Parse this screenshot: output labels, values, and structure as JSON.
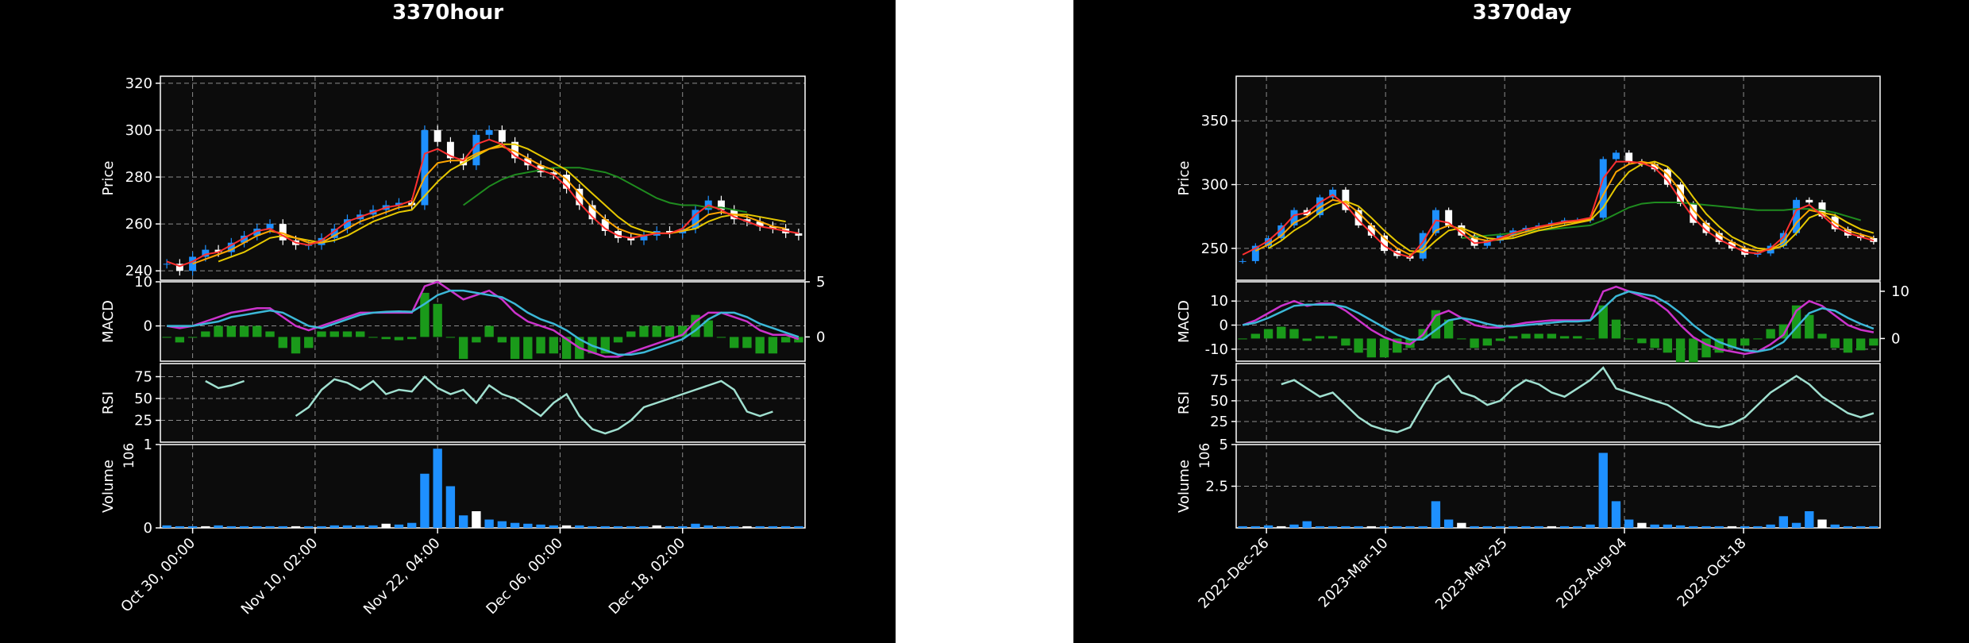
{
  "colors": {
    "background": "#000000",
    "plot_bg": "#0c0c0c",
    "grid": "#8c8c8c",
    "axis": "#ffffff",
    "up": "#1e90ff",
    "down": "#ffffff",
    "ma_short": "#ff3030",
    "ma_mid": "#ffa500",
    "ma_long1": "#e6c800",
    "ma_long2": "#1f8c1f",
    "macd": "#cc33cc",
    "signal": "#3cb8d8",
    "hist": "#1a9a1a",
    "rsi": "#a0e0d0",
    "volume": "#1e90ff"
  },
  "chart_data": [
    {
      "type": "candlestick",
      "title": "3370hour",
      "x_tick_labels": [
        "Oct 30, 00:00",
        "Nov 10, 02:00",
        "Nov 22, 04:00",
        "Dec 06, 00:00",
        "Dec 18, 02:00"
      ],
      "price": {
        "ylabel": "Price",
        "ylim": [
          236,
          323
        ],
        "yticks": [
          240,
          260,
          280,
          300,
          320
        ],
        "close": [
          243,
          240,
          246,
          249,
          248,
          252,
          255,
          258,
          260,
          253,
          251,
          251,
          254,
          258,
          262,
          264,
          266,
          268,
          269,
          268,
          300,
          295,
          288,
          285,
          298,
          300,
          295,
          288,
          285,
          282,
          281,
          275,
          268,
          262,
          257,
          254,
          253,
          255,
          257,
          256,
          258,
          266,
          270,
          266,
          262,
          261,
          259,
          258,
          256,
          255
        ],
        "ma_short": [
          244,
          242,
          244,
          247,
          248,
          251,
          254,
          257,
          258,
          255,
          252,
          251,
          253,
          257,
          261,
          263,
          265,
          267,
          268,
          270,
          290,
          292,
          289,
          287,
          294,
          296,
          294,
          289,
          286,
          283,
          281,
          276,
          269,
          263,
          258,
          255,
          254,
          255,
          256,
          256,
          258,
          264,
          268,
          266,
          263,
          261,
          259,
          258,
          257,
          256
        ],
        "ma_mid": [
          null,
          null,
          243,
          245,
          247,
          249,
          252,
          255,
          257,
          256,
          254,
          252,
          252,
          255,
          258,
          261,
          263,
          265,
          267,
          268,
          280,
          286,
          287,
          287,
          290,
          292,
          293,
          291,
          288,
          285,
          283,
          279,
          273,
          267,
          262,
          258,
          256,
          255,
          256,
          256,
          257,
          260,
          264,
          265,
          264,
          263,
          261,
          259,
          258,
          null
        ],
        "ma_long1": [
          null,
          null,
          null,
          null,
          244,
          246,
          248,
          251,
          254,
          255,
          254,
          253,
          252,
          253,
          255,
          258,
          261,
          263,
          265,
          266,
          272,
          278,
          283,
          286,
          289,
          292,
          294,
          294,
          292,
          289,
          286,
          283,
          278,
          273,
          268,
          263,
          259,
          257,
          256,
          256,
          257,
          258,
          261,
          263,
          264,
          264,
          263,
          262,
          261,
          null
        ],
        "ma_long2": [
          null,
          null,
          null,
          null,
          null,
          null,
          null,
          null,
          null,
          null,
          null,
          null,
          null,
          null,
          null,
          null,
          null,
          null,
          null,
          null,
          null,
          null,
          null,
          268,
          272,
          276,
          279,
          281,
          282,
          283,
          284,
          284,
          284,
          283,
          282,
          280,
          277,
          274,
          271,
          269,
          268,
          268,
          267,
          267,
          266,
          265,
          null,
          null,
          null,
          null
        ]
      },
      "macd": {
        "ylabel": "MACD",
        "ylim": [
          -8,
          10
        ],
        "yticks": [
          0,
          10
        ],
        "right_ylim": [
          -2.2,
          5
        ],
        "right_yticks": [
          0,
          5
        ],
        "macd": [
          0,
          -0.5,
          0,
          1,
          2,
          3,
          3.5,
          4,
          4,
          2,
          0,
          -1,
          0,
          1,
          2,
          3,
          3,
          3,
          3,
          3,
          9,
          10,
          8,
          6,
          7,
          8,
          6,
          3,
          1,
          0,
          -1,
          -3,
          -5,
          -6,
          -7,
          -7,
          -6,
          -5,
          -4,
          -3,
          -2,
          1,
          3,
          3,
          2,
          1,
          -1,
          -2,
          -2,
          -3
        ],
        "signal": [
          0,
          0,
          0,
          0.5,
          1,
          2,
          2.5,
          3,
          3.5,
          3,
          1.5,
          0,
          -0.5,
          0.5,
          1.5,
          2.5,
          3,
          3.2,
          3.3,
          3.2,
          5,
          7,
          8,
          8,
          7.5,
          7,
          6.5,
          5,
          3,
          1.5,
          0.5,
          -1,
          -3,
          -4.5,
          -5.5,
          -6.5,
          -6.5,
          -6,
          -5,
          -4,
          -3,
          -1,
          1.5,
          3,
          3,
          2,
          0.5,
          -0.5,
          -1.5,
          -2.5
        ],
        "hist": [
          0,
          -0.5,
          0,
          0.5,
          1,
          1,
          1,
          1,
          0.5,
          -1,
          -1.5,
          -1,
          0.5,
          0.5,
          0.5,
          0.5,
          0,
          -0.2,
          -0.3,
          -0.2,
          4,
          3,
          0,
          -2,
          -0.5,
          1,
          -0.5,
          -2,
          -2,
          -1.5,
          -1.5,
          -2,
          -2,
          -1.5,
          -1.5,
          -0.5,
          0.5,
          1,
          1,
          1,
          1,
          2,
          1.5,
          0,
          -1,
          -1,
          -1.5,
          -1.5,
          -0.5,
          -0.5
        ]
      },
      "rsi": {
        "ylabel": "RSI",
        "ylim": [
          0,
          90
        ],
        "yticks": [
          25,
          50,
          75
        ],
        "values": [
          null,
          null,
          null,
          70,
          62,
          65,
          70,
          null,
          null,
          null,
          30,
          40,
          60,
          72,
          68,
          60,
          70,
          55,
          60,
          58,
          75,
          62,
          55,
          60,
          45,
          65,
          55,
          50,
          40,
          30,
          45,
          55,
          30,
          15,
          10,
          15,
          25,
          40,
          45,
          50,
          55,
          60,
          65,
          70,
          60,
          35,
          30,
          35,
          null,
          null
        ]
      },
      "volume": {
        "ylabel": "Volume",
        "exponent_label": "10^6",
        "ylim": [
          0,
          1
        ],
        "yticks": [
          0,
          1
        ],
        "values": [
          0.03,
          0.02,
          0.02,
          0.02,
          0.03,
          0.02,
          0.02,
          0.02,
          0.02,
          0.02,
          0.02,
          0.02,
          0.02,
          0.03,
          0.03,
          0.03,
          0.03,
          0.05,
          0.04,
          0.06,
          0.65,
          0.95,
          0.5,
          0.15,
          0.2,
          0.1,
          0.08,
          0.06,
          0.05,
          0.04,
          0.03,
          0.03,
          0.03,
          0.02,
          0.02,
          0.02,
          0.02,
          0.02,
          0.03,
          0.02,
          0.02,
          0.05,
          0.03,
          0.02,
          0.02,
          0.02,
          0.02,
          0.02,
          0.02,
          0.02
        ]
      }
    },
    {
      "type": "candlestick",
      "title": "3370day",
      "x_tick_labels": [
        "2022-Dec-26",
        "2023-Mar-10",
        "2023-May-25",
        "2023-Aug-04",
        "2023-Oct-18"
      ],
      "price": {
        "ylabel": "Price",
        "ylim": [
          225,
          385
        ],
        "yticks": [
          250,
          300,
          350
        ],
        "close": [
          240,
          252,
          258,
          268,
          280,
          276,
          290,
          296,
          280,
          268,
          260,
          248,
          244,
          242,
          262,
          280,
          268,
          260,
          252,
          256,
          260,
          264,
          266,
          268,
          270,
          272,
          272,
          274,
          320,
          325,
          318,
          316,
          312,
          300,
          285,
          270,
          262,
          255,
          250,
          245,
          246,
          252,
          262,
          288,
          286,
          275,
          265,
          260,
          258,
          255
        ],
        "ma_short": [
          245,
          250,
          256,
          265,
          276,
          278,
          286,
          292,
          284,
          272,
          262,
          252,
          246,
          243,
          255,
          272,
          270,
          262,
          254,
          255,
          258,
          262,
          265,
          267,
          269,
          271,
          272,
          274,
          305,
          318,
          318,
          317,
          313,
          303,
          288,
          274,
          264,
          257,
          252,
          247,
          246,
          250,
          259,
          280,
          284,
          276,
          267,
          262,
          259,
          256
        ],
        "ma_mid": [
          null,
          248,
          253,
          260,
          270,
          275,
          282,
          288,
          286,
          278,
          268,
          258,
          250,
          245,
          250,
          264,
          268,
          265,
          258,
          256,
          257,
          260,
          263,
          266,
          268,
          270,
          271,
          273,
          292,
          310,
          316,
          318,
          316,
          308,
          295,
          280,
          269,
          261,
          255,
          250,
          248,
          249,
          255,
          270,
          280,
          278,
          270,
          264,
          261,
          258
        ],
        "ma_long1": [
          null,
          null,
          250,
          256,
          264,
          270,
          278,
          284,
          287,
          283,
          274,
          264,
          255,
          248,
          247,
          256,
          264,
          266,
          262,
          258,
          257,
          258,
          261,
          264,
          266,
          268,
          270,
          272,
          282,
          298,
          310,
          316,
          318,
          314,
          304,
          290,
          277,
          267,
          259,
          254,
          250,
          249,
          252,
          262,
          274,
          278,
          276,
          270,
          265,
          262
        ],
        "ma_long2": [
          null,
          null,
          null,
          null,
          null,
          null,
          null,
          null,
          null,
          null,
          null,
          null,
          null,
          null,
          null,
          null,
          null,
          258,
          259,
          260,
          261,
          262,
          263,
          264,
          265,
          266,
          267,
          268,
          272,
          277,
          282,
          285,
          286,
          286,
          286,
          285,
          284,
          283,
          282,
          281,
          280,
          280,
          280,
          281,
          281,
          280,
          278,
          275,
          272,
          null
        ]
      },
      "macd": {
        "ylabel": "MACD",
        "ylim": [
          -15,
          18
        ],
        "yticks": [
          -10,
          0,
          10
        ],
        "right_ylim": [
          -4.8,
          12
        ],
        "right_yticks": [
          0,
          10
        ],
        "macd": [
          0,
          2,
          5,
          8,
          10,
          8,
          9,
          9,
          6,
          2,
          -2,
          -5,
          -7,
          -8,
          -4,
          4,
          6,
          3,
          0,
          -1,
          -1,
          0,
          1,
          1.5,
          2,
          2,
          2,
          2,
          14,
          16,
          14,
          12,
          10,
          6,
          0,
          -5,
          -8,
          -10,
          -11,
          -12,
          -11,
          -8,
          -4,
          6,
          10,
          8,
          4,
          0,
          -2,
          -3
        ],
        "signal": [
          0,
          1,
          3,
          5.5,
          8,
          8.5,
          8.5,
          8.5,
          7.5,
          5,
          2,
          -1,
          -4,
          -6,
          -6,
          -2,
          2,
          3,
          2,
          0.5,
          -0.5,
          -0.5,
          0,
          0.5,
          1,
          1.5,
          1.5,
          2,
          7,
          12,
          14,
          13,
          12,
          9,
          5,
          0,
          -4,
          -7,
          -9,
          -10.5,
          -11,
          -10,
          -7,
          -1,
          5,
          7,
          6,
          3,
          0.5,
          -1.5
        ],
        "hist": [
          0,
          1,
          2,
          2.5,
          2,
          -0.5,
          0.5,
          0.5,
          -1.5,
          -3,
          -4,
          -4,
          -3,
          -2,
          2,
          6,
          4,
          0,
          -2,
          -1.5,
          -0.5,
          0.5,
          1,
          1,
          1,
          0.5,
          0.5,
          0,
          7,
          4,
          0,
          -1,
          -2,
          -3,
          -5,
          -5,
          -4,
          -3,
          -2,
          -1.5,
          0,
          2,
          3,
          7,
          5,
          1,
          -2,
          -3,
          -2.5,
          -1.5
        ]
      },
      "rsi": {
        "ylabel": "RSI",
        "ylim": [
          0,
          95
        ],
        "yticks": [
          25,
          50,
          75
        ],
        "values": [
          null,
          null,
          null,
          70,
          75,
          65,
          55,
          60,
          45,
          30,
          20,
          15,
          12,
          18,
          45,
          70,
          80,
          60,
          55,
          45,
          50,
          65,
          75,
          70,
          60,
          55,
          65,
          75,
          90,
          65,
          60,
          55,
          50,
          45,
          35,
          25,
          20,
          18,
          22,
          30,
          45,
          60,
          70,
          80,
          70,
          55,
          45,
          35,
          30,
          35
        ]
      },
      "volume": {
        "ylabel": "Volume",
        "exponent_label": "10^6",
        "ylim": [
          0,
          5
        ],
        "yticks": [
          2.5,
          5.0
        ],
        "values": [
          0.1,
          0.1,
          0.15,
          0.1,
          0.2,
          0.4,
          0.1,
          0.1,
          0.1,
          0.1,
          0.1,
          0.1,
          0.1,
          0.1,
          0.1,
          1.6,
          0.5,
          0.3,
          0.1,
          0.1,
          0.1,
          0.1,
          0.1,
          0.1,
          0.1,
          0.1,
          0.1,
          0.2,
          4.5,
          1.6,
          0.5,
          0.3,
          0.2,
          0.2,
          0.15,
          0.1,
          0.1,
          0.1,
          0.1,
          0.1,
          0.1,
          0.2,
          0.7,
          0.3,
          1.0,
          0.5,
          0.2,
          0.1,
          0.1,
          0.1
        ]
      }
    }
  ]
}
